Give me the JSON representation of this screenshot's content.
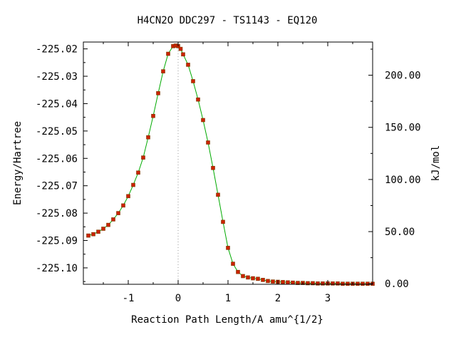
{
  "chart_data": {
    "type": "line",
    "title": "H4CN2O   DDC297 - TS1143 - EQ120",
    "xlabel": "Reaction Path Length/A amu^{1/2}",
    "ylabel": "Energy/Hartree",
    "y2label": "kJ/mol",
    "xlim": [
      -1.9,
      3.9
    ],
    "ylim": [
      -225.106,
      -225.0175
    ],
    "x_ticks": [
      -1,
      0,
      1,
      2,
      3
    ],
    "x_tick_labels": [
      "-1",
      "0",
      "1",
      "2",
      "3"
    ],
    "y_ticks": [
      -225.02,
      -225.03,
      -225.04,
      -225.05,
      -225.06,
      -225.07,
      -225.08,
      -225.09,
      -225.1
    ],
    "y_tick_labels": [
      "-225.02",
      "-225.03",
      "-225.04",
      "-225.05",
      "-225.06",
      "-225.07",
      "-225.08",
      "-225.09",
      "-225.10"
    ],
    "y2_reference_energy": -225.1058,
    "y2_ticks": [
      0,
      50,
      100,
      150,
      200
    ],
    "y2_tick_labels": [
      "0.00",
      "50.00",
      "100.00",
      "150.00",
      "200.00"
    ],
    "ts_marker_x": 0,
    "grid": false,
    "legend": "none",
    "colors": {
      "curve": "#00aa00",
      "marker": "#cc2200",
      "ts_line": "#999999"
    },
    "series": [
      {
        "x": [
          -1.8,
          -1.7,
          -1.6,
          -1.5,
          -1.4,
          -1.3,
          -1.2,
          -1.1,
          -1.0,
          -0.9,
          -0.8,
          -0.7,
          -0.6,
          -0.5,
          -0.4,
          -0.3,
          -0.2,
          -0.1,
          -0.05,
          0.0,
          0.05,
          0.1,
          0.2,
          0.3,
          0.4,
          0.5,
          0.6,
          0.7,
          0.8,
          0.9,
          1.0,
          1.1,
          1.2,
          1.3,
          1.4,
          1.5,
          1.6,
          1.7,
          1.8,
          1.9,
          2.0,
          2.1,
          2.2,
          2.3,
          2.4,
          2.5,
          2.6,
          2.7,
          2.8,
          2.9,
          3.0,
          3.1,
          3.2,
          3.3,
          3.4,
          3.5,
          3.6,
          3.7,
          3.8,
          3.9
        ],
        "y": [
          -225.0882,
          -225.0877,
          -225.0868,
          -225.0857,
          -225.0843,
          -225.0823,
          -225.08,
          -225.0772,
          -225.0738,
          -225.0697,
          -225.0652,
          -225.0597,
          -225.0523,
          -225.0445,
          -225.0362,
          -225.0282,
          -225.0218,
          -225.019,
          -225.0188,
          -225.019,
          -225.02,
          -225.022,
          -225.0258,
          -225.0318,
          -225.0385,
          -225.046,
          -225.0542,
          -225.0635,
          -225.0733,
          -225.0832,
          -225.0927,
          -225.0985,
          -225.1015,
          -225.103,
          -225.1035,
          -225.1038,
          -225.104,
          -225.1044,
          -225.1048,
          -225.105,
          -225.1051,
          -225.1052,
          -225.1053,
          -225.1054,
          -225.1055,
          -225.1055,
          -225.1056,
          -225.1056,
          -225.1057,
          -225.1057,
          -225.1057,
          -225.1057,
          -225.1057,
          -225.1058,
          -225.1058,
          -225.1058,
          -225.1058,
          -225.1058,
          -225.1058,
          -225.1058
        ]
      }
    ]
  }
}
